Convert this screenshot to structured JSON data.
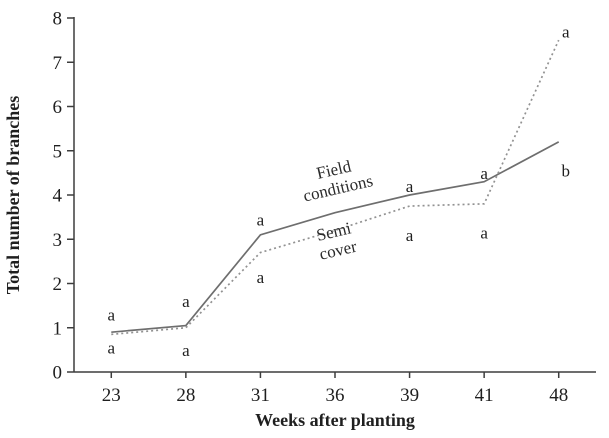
{
  "chart_data": {
    "type": "line",
    "title": "",
    "xlabel": "Weeks after planting",
    "ylabel": "Total number of branches",
    "x_categories": [
      "23",
      "28",
      "31",
      "36",
      "39",
      "41",
      "48"
    ],
    "yticks": [
      "0",
      "1",
      "2",
      "3",
      "4",
      "5",
      "6",
      "7",
      "8"
    ],
    "ylim": [
      0,
      8
    ],
    "grid": false,
    "legend": "inline-rotated-labels",
    "series": [
      {
        "name": "Field conditions",
        "line_style": "solid",
        "color": "#6e6e6e",
        "values": [
          0.9,
          1.05,
          3.1,
          3.6,
          4.0,
          4.3,
          5.2
        ]
      },
      {
        "name": "Semi cover",
        "line_style": "dotted",
        "color": "#929292",
        "values": [
          0.85,
          1.0,
          2.7,
          3.2,
          3.75,
          3.8,
          7.5
        ]
      }
    ],
    "series_labels": [
      {
        "lines": [
          "Field",
          "conditions"
        ],
        "x_category": "36",
        "y": 4.45,
        "angle": -13
      },
      {
        "lines": [
          "Semi",
          "cover"
        ],
        "x_category": "36",
        "y": 3.05,
        "angle": -13
      }
    ],
    "annotations": [
      {
        "x_category": "23",
        "y": 1.3,
        "dx": 0,
        "label": "a"
      },
      {
        "x_category": "23",
        "y": 0.55,
        "dx": 0,
        "label": "a"
      },
      {
        "x_category": "28",
        "y": 1.6,
        "dx": 0,
        "label": "a"
      },
      {
        "x_category": "28",
        "y": 0.5,
        "dx": 0,
        "label": "a"
      },
      {
        "x_category": "31",
        "y": 3.45,
        "dx": 0,
        "label": "a"
      },
      {
        "x_category": "31",
        "y": 2.15,
        "dx": 0,
        "label": "a"
      },
      {
        "x_category": "39",
        "y": 4.2,
        "dx": 0,
        "label": "a"
      },
      {
        "x_category": "39",
        "y": 3.1,
        "dx": 0,
        "label": "a"
      },
      {
        "x_category": "41",
        "y": 4.5,
        "dx": 0,
        "label": "a"
      },
      {
        "x_category": "41",
        "y": 3.15,
        "dx": 0,
        "label": "a"
      },
      {
        "x_category": "48",
        "y": 7.7,
        "dx": 7,
        "label": "a"
      },
      {
        "x_category": "48",
        "y": 4.55,
        "dx": 7,
        "label": "b"
      }
    ],
    "colors": {
      "axis": "#3d3d3d",
      "text": "#1f1f1f",
      "background": "#ffffff"
    }
  }
}
